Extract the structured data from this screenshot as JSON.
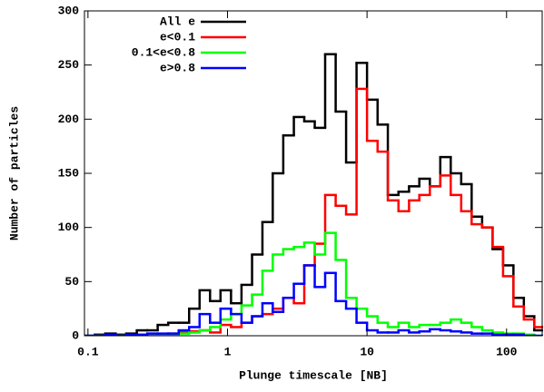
{
  "chart_data": {
    "type": "histogram",
    "xlabel": "Plunge timescale [NB]",
    "ylabel": "Number of particles",
    "xscale": "log",
    "xlim": [
      0.0944,
      180
    ],
    "ylim": [
      0,
      300
    ],
    "xticks": [
      0.1,
      1,
      10,
      100
    ],
    "yticks": [
      0,
      50,
      100,
      150,
      200,
      250,
      300
    ],
    "legend": "upper left",
    "bins": [
      0.0944,
      0.112,
      0.133,
      0.158,
      0.188,
      0.224,
      0.266,
      0.316,
      0.376,
      0.447,
      0.531,
      0.631,
      0.75,
      0.891,
      1.06,
      1.26,
      1.5,
      1.78,
      2.11,
      2.51,
      2.99,
      3.55,
      4.22,
      5.01,
      5.96,
      7.08,
      8.41,
      10.0,
      11.9,
      14.1,
      16.8,
      20.0,
      23.7,
      28.2,
      33.5,
      39.8,
      47.3,
      56.2,
      66.8,
      79.4,
      94.4,
      112,
      133,
      158,
      188
    ],
    "series": [
      {
        "name": "All e",
        "color": "#000000",
        "values": [
          0,
          1,
          2,
          1,
          2,
          5,
          5,
          10,
          12,
          12,
          25,
          42,
          32,
          42,
          30,
          47,
          75,
          105,
          150,
          185,
          202,
          198,
          192,
          260,
          207,
          160,
          252,
          218,
          195,
          130,
          133,
          138,
          145,
          138,
          165,
          150,
          140,
          110,
          100,
          80,
          65,
          35,
          18,
          5
        ]
      },
      {
        "name": "e<0.1",
        "color": "#ff0000",
        "values": [
          0,
          0,
          0,
          0,
          0,
          0,
          0,
          1,
          2,
          3,
          4,
          5,
          3,
          10,
          8,
          12,
          18,
          20,
          25,
          35,
          30,
          65,
          85,
          130,
          120,
          112,
          228,
          180,
          170,
          125,
          115,
          125,
          130,
          138,
          148,
          130,
          115,
          103,
          100,
          82,
          55,
          27,
          15,
          8
        ]
      },
      {
        "name": "0.1<e<0.8",
        "color": "#00ff00",
        "values": [
          0,
          0,
          0,
          0,
          0,
          0,
          0,
          0,
          1,
          2,
          3,
          5,
          8,
          15,
          20,
          28,
          38,
          60,
          75,
          80,
          82,
          86,
          75,
          95,
          70,
          35,
          25,
          18,
          12,
          8,
          12,
          8,
          10,
          10,
          12,
          15,
          12,
          8,
          5,
          3,
          2,
          2,
          1,
          0
        ]
      },
      {
        "name": "e>0.8",
        "color": "#0000ff",
        "values": [
          0,
          0,
          1,
          0,
          1,
          1,
          2,
          2,
          2,
          5,
          8,
          20,
          12,
          25,
          20,
          12,
          18,
          30,
          22,
          35,
          48,
          65,
          45,
          58,
          32,
          25,
          12,
          5,
          3,
          3,
          5,
          3,
          4,
          6,
          5,
          4,
          3,
          2,
          2,
          1,
          1,
          1,
          0,
          0
        ]
      }
    ]
  }
}
